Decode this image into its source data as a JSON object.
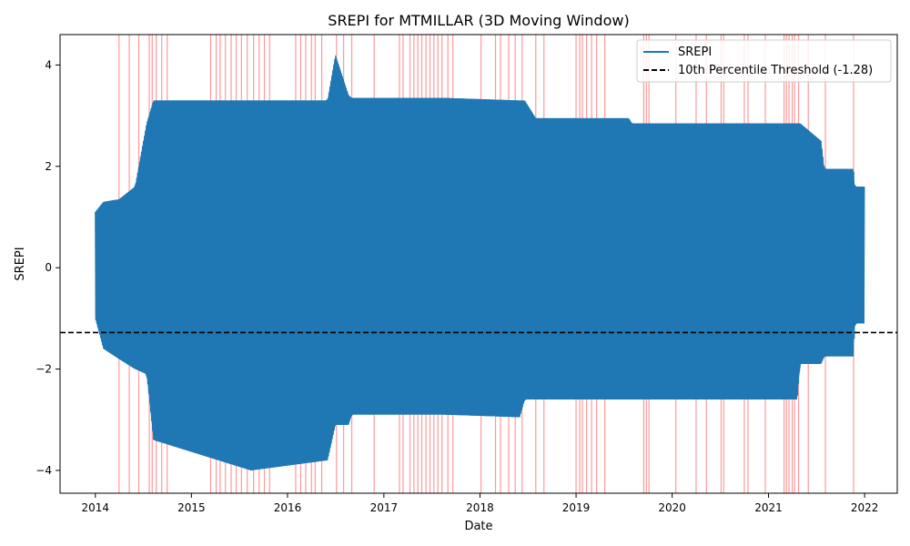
{
  "chart_data": {
    "type": "line",
    "title": "SREPI for MTMILLAR (3D Moving Window)",
    "xlabel": "Date",
    "ylabel": "SREPI",
    "xlim": [
      "2013-08-20",
      "2022-05-05"
    ],
    "ylim": [
      -4.45,
      4.6
    ],
    "x_ticks": [
      "2014",
      "2015",
      "2016",
      "2017",
      "2018",
      "2019",
      "2020",
      "2021",
      "2022"
    ],
    "y_ticks": [
      -4,
      -2,
      0,
      2,
      4
    ],
    "y_tick_labels": [
      "−4",
      "−2",
      "0",
      "2",
      "4"
    ],
    "grid": false,
    "legend": {
      "placement": "top-right",
      "entries": [
        {
          "label": "SREPI",
          "style": "solid",
          "color": "#1f77b4"
        },
        {
          "label": "10th Percentile Threshold (-1.28)",
          "style": "dashed",
          "color": "#000000"
        }
      ]
    },
    "threshold": {
      "label": "10th Percentile Threshold (-1.28)",
      "value": -1.28,
      "color": "#000000"
    },
    "series": [
      {
        "name": "SREPI",
        "color": "#1f77b4",
        "envelope": [
          {
            "date": "2014-01-01",
            "min": -1.0,
            "max": 1.1
          },
          {
            "date": "2014-02-01",
            "min": -1.6,
            "max": 1.3
          },
          {
            "date": "2014-04-01",
            "min": -1.8,
            "max": 1.35
          },
          {
            "date": "2014-06-01",
            "min": -2.0,
            "max": 1.6
          },
          {
            "date": "2014-07-15",
            "min": -2.1,
            "max": 2.85
          },
          {
            "date": "2014-08-10",
            "min": -3.4,
            "max": 3.3
          },
          {
            "date": "2015-08-15",
            "min": -4.0,
            "max": 3.3
          },
          {
            "date": "2016-06-01",
            "min": -3.8,
            "max": 3.3
          },
          {
            "date": "2016-07-01",
            "min": -3.1,
            "max": 4.2
          },
          {
            "date": "2016-08-20",
            "min": -3.1,
            "max": 3.4
          },
          {
            "date": "2016-09-01",
            "min": -2.9,
            "max": 3.35
          },
          {
            "date": "2017-08-20",
            "min": -2.9,
            "max": 3.35
          },
          {
            "date": "2018-06-01",
            "min": -2.95,
            "max": 3.3
          },
          {
            "date": "2018-06-20",
            "min": -2.6,
            "max": 3.3
          },
          {
            "date": "2018-08-01",
            "min": -2.6,
            "max": 2.95
          },
          {
            "date": "2019-07-20",
            "min": -2.6,
            "max": 2.95
          },
          {
            "date": "2019-08-01",
            "min": -2.6,
            "max": 2.85
          },
          {
            "date": "2021-04-20",
            "min": -2.6,
            "max": 2.85
          },
          {
            "date": "2021-05-01",
            "min": -1.9,
            "max": 2.85
          },
          {
            "date": "2021-07-20",
            "min": -1.9,
            "max": 2.5
          },
          {
            "date": "2021-08-01",
            "min": -1.75,
            "max": 1.95
          },
          {
            "date": "2021-11-20",
            "min": -1.75,
            "max": 1.95
          },
          {
            "date": "2021-11-25",
            "min": -1.1,
            "max": 1.6
          },
          {
            "date": "2021-12-31",
            "min": -1.1,
            "max": 1.6
          }
        ]
      }
    ],
    "highlight_spans": {
      "color": "#ff0000",
      "opacity": 0.4,
      "dates": [
        "2014-04-01",
        "2014-05-10",
        "2014-06-15",
        "2014-07-25",
        "2014-08-05",
        "2014-08-20",
        "2014-09-10",
        "2014-10-01",
        "2015-03-15",
        "2015-04-05",
        "2015-04-20",
        "2015-05-10",
        "2015-06-01",
        "2015-06-20",
        "2015-07-10",
        "2015-08-01",
        "2015-08-25",
        "2015-09-15",
        "2015-10-05",
        "2015-10-25",
        "2016-02-01",
        "2016-02-20",
        "2016-03-10",
        "2016-04-01",
        "2016-04-15",
        "2016-05-10",
        "2016-07-05",
        "2016-08-01",
        "2016-09-01",
        "2016-11-25",
        "2017-03-01",
        "2017-03-15",
        "2017-04-10",
        "2017-04-25",
        "2017-05-10",
        "2017-05-25",
        "2017-06-10",
        "2017-06-25",
        "2017-07-10",
        "2017-07-25",
        "2017-08-10",
        "2017-09-01",
        "2017-09-20",
        "2018-01-05",
        "2018-03-01",
        "2018-03-20",
        "2018-04-20",
        "2018-05-15",
        "2018-06-10",
        "2018-08-01",
        "2018-09-01",
        "2019-01-01",
        "2019-01-15",
        "2019-01-25",
        "2019-02-10",
        "2019-03-01",
        "2019-03-20",
        "2019-04-20",
        "2019-09-15",
        "2019-09-25",
        "2019-10-05",
        "2020-01-15",
        "2020-04-01",
        "2020-05-10",
        "2020-07-05",
        "2020-07-15",
        "2020-10-01",
        "2020-10-15",
        "2020-12-20",
        "2021-03-01",
        "2021-03-10",
        "2021-03-20",
        "2021-04-01",
        "2021-04-10",
        "2021-04-25",
        "2021-06-01",
        "2021-08-05",
        "2021-11-20"
      ]
    }
  }
}
